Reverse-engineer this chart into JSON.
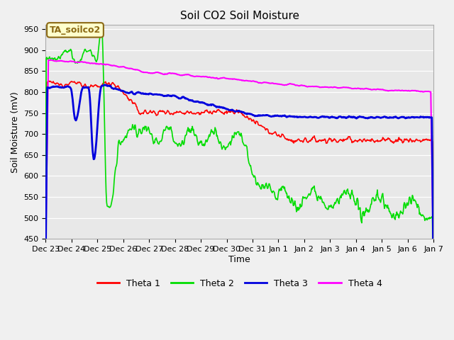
{
  "title": "Soil CO2 Soil Moisture",
  "ylabel": "Soil Moisture (mV)",
  "xlabel": "Time",
  "annotation": "TA_soilco2",
  "ylim": [
    450,
    960
  ],
  "yticks": [
    450,
    500,
    550,
    600,
    650,
    700,
    750,
    800,
    850,
    900,
    950
  ],
  "legend": [
    "Theta 1",
    "Theta 2",
    "Theta 3",
    "Theta 4"
  ],
  "colors": {
    "theta1": "#ff0000",
    "theta2": "#00dd00",
    "theta3": "#0000dd",
    "theta4": "#ff00ff"
  },
  "bg_color": "#e8e8e8",
  "xtick_labels": [
    "Dec 23",
    "Dec 24",
    "Dec 25",
    "Dec 26",
    "Dec 27",
    "Dec 28",
    "Dec 29",
    "Dec 30",
    "Dec 31",
    "Jan 1",
    "Jan 2",
    "Jan 3",
    "Jan 4",
    "Jan 5",
    "Jan 6",
    "Jan 7"
  ],
  "figsize": [
    6.4,
    4.8
  ],
  "dpi": 100
}
